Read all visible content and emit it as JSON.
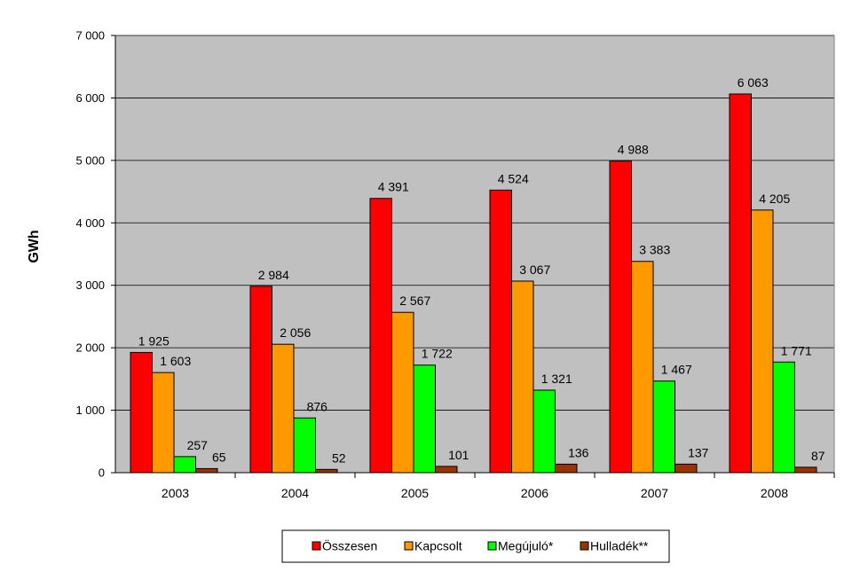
{
  "chart_data": {
    "type": "bar",
    "ylabel": "GWh",
    "ylim": [
      0,
      7000
    ],
    "yticks": [
      0,
      1000,
      2000,
      3000,
      4000,
      5000,
      6000,
      7000
    ],
    "ytick_labels": [
      "0",
      "1 000",
      "2 000",
      "3 000",
      "4 000",
      "5 000",
      "6 000",
      "7 000"
    ],
    "categories": [
      "2003",
      "2004",
      "2005",
      "2006",
      "2007",
      "2008"
    ],
    "series": [
      {
        "name": "Összesen",
        "color": "#ff0000",
        "values": [
          1925,
          2984,
          4391,
          4524,
          4988,
          6063
        ],
        "labels": [
          "1 925",
          "2 984",
          "4 391",
          "4 524",
          "4 988",
          "6 063"
        ]
      },
      {
        "name": "Kapcsolt",
        "color": "#ff9900",
        "values": [
          1603,
          2056,
          2567,
          3067,
          3383,
          4205
        ],
        "labels": [
          "1 603",
          "2 056",
          "2 567",
          "3 067",
          "3 383",
          "4 205"
        ]
      },
      {
        "name": "Megújuló*",
        "color": "#00ff00",
        "values": [
          257,
          876,
          1722,
          1321,
          1467,
          1771
        ],
        "labels": [
          "257",
          "876",
          "1 722",
          "1 321",
          "1 467",
          "1 771"
        ]
      },
      {
        "name": "Hulladék**",
        "color": "#993300",
        "values": [
          65,
          52,
          101,
          136,
          137,
          87
        ],
        "labels": [
          "65",
          "52",
          "101",
          "136",
          "137",
          "87"
        ]
      }
    ],
    "grid": true,
    "plot_background": "#c0c0c0",
    "legend_position": "bottom"
  }
}
